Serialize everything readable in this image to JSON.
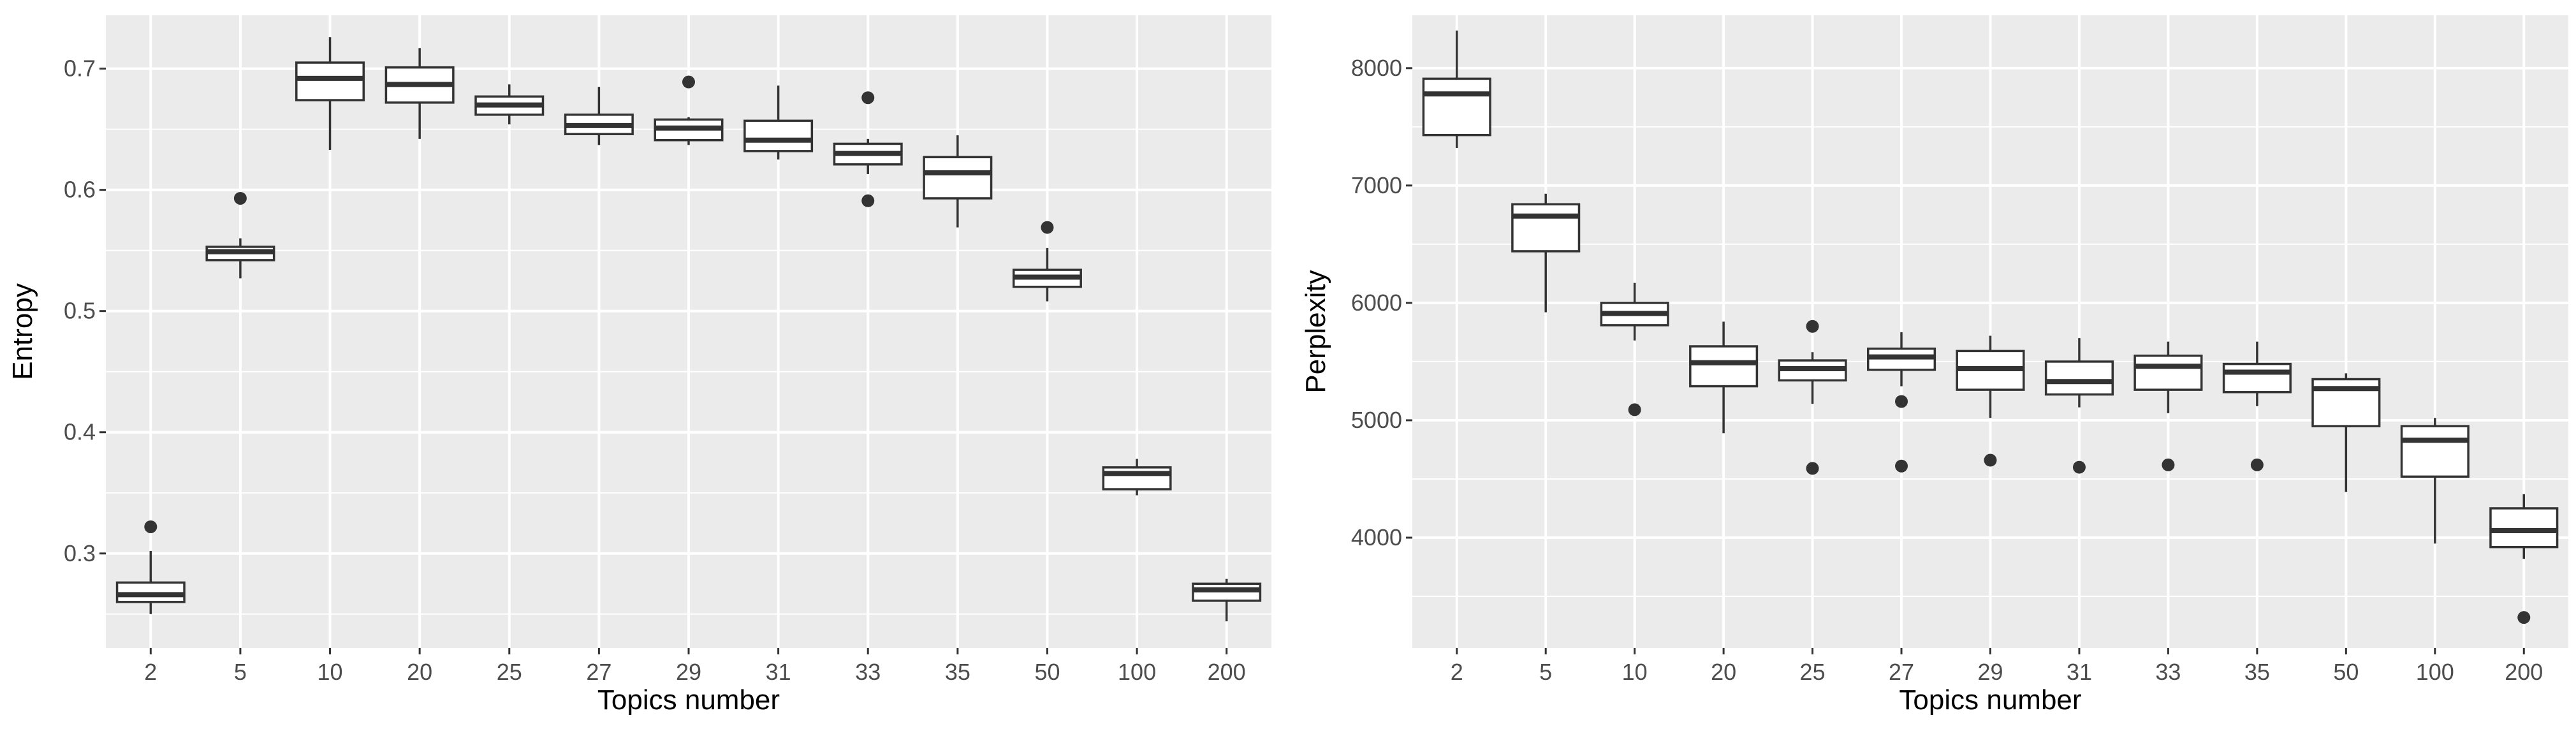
{
  "chart_data": [
    {
      "type": "box",
      "xlabel": "Topics number",
      "ylabel": "Entropy",
      "categories": [
        "2",
        "5",
        "10",
        "20",
        "25",
        "27",
        "29",
        "31",
        "33",
        "35",
        "50",
        "100",
        "200"
      ],
      "ylim": [
        0.222,
        0.744
      ],
      "yticks": [
        0.3,
        0.4,
        0.5,
        0.6,
        0.7
      ],
      "ytick_labels": [
        "0.3",
        "0.4",
        "0.5",
        "0.6",
        "0.7"
      ],
      "grid": true,
      "boxes": [
        {
          "min": 0.25,
          "q1": 0.26,
          "median": 0.266,
          "q3": 0.276,
          "max": 0.302,
          "outliers": [
            0.322
          ]
        },
        {
          "min": 0.527,
          "q1": 0.542,
          "median": 0.549,
          "q3": 0.553,
          "max": 0.56,
          "outliers": [
            0.593
          ]
        },
        {
          "min": 0.633,
          "q1": 0.674,
          "median": 0.692,
          "q3": 0.705,
          "max": 0.726,
          "outliers": []
        },
        {
          "min": 0.642,
          "q1": 0.672,
          "median": 0.687,
          "q3": 0.701,
          "max": 0.717,
          "outliers": []
        },
        {
          "min": 0.654,
          "q1": 0.662,
          "median": 0.67,
          "q3": 0.677,
          "max": 0.687,
          "outliers": []
        },
        {
          "min": 0.637,
          "q1": 0.646,
          "median": 0.653,
          "q3": 0.662,
          "max": 0.685,
          "outliers": []
        },
        {
          "min": 0.637,
          "q1": 0.641,
          "median": 0.651,
          "q3": 0.658,
          "max": 0.66,
          "outliers": [
            0.689
          ]
        },
        {
          "min": 0.625,
          "q1": 0.632,
          "median": 0.641,
          "q3": 0.657,
          "max": 0.686,
          "outliers": []
        },
        {
          "min": 0.613,
          "q1": 0.621,
          "median": 0.63,
          "q3": 0.638,
          "max": 0.642,
          "outliers": [
            0.591,
            0.676
          ]
        },
        {
          "min": 0.569,
          "q1": 0.593,
          "median": 0.614,
          "q3": 0.627,
          "max": 0.645,
          "outliers": []
        },
        {
          "min": 0.508,
          "q1": 0.52,
          "median": 0.528,
          "q3": 0.534,
          "max": 0.552,
          "outliers": [
            0.569
          ]
        },
        {
          "min": 0.348,
          "q1": 0.353,
          "median": 0.366,
          "q3": 0.371,
          "max": 0.378,
          "outliers": []
        },
        {
          "min": 0.244,
          "q1": 0.261,
          "median": 0.27,
          "q3": 0.275,
          "max": 0.279,
          "outliers": []
        }
      ]
    },
    {
      "type": "box",
      "xlabel": "Topics number",
      "ylabel": "Perplexity",
      "categories": [
        "2",
        "5",
        "10",
        "20",
        "25",
        "27",
        "29",
        "31",
        "33",
        "35",
        "50",
        "100",
        "200"
      ],
      "ylim": [
        3060,
        8450
      ],
      "yticks": [
        4000,
        5000,
        6000,
        7000,
        8000
      ],
      "ytick_labels": [
        "4000",
        "5000",
        "6000",
        "7000",
        "8000"
      ],
      "grid": true,
      "boxes": [
        {
          "min": 7320,
          "q1": 7430,
          "median": 7780,
          "q3": 7910,
          "max": 8320,
          "outliers": []
        },
        {
          "min": 5920,
          "q1": 6440,
          "median": 6740,
          "q3": 6840,
          "max": 6930,
          "outliers": []
        },
        {
          "min": 5680,
          "q1": 5810,
          "median": 5910,
          "q3": 6000,
          "max": 6170,
          "outliers": [
            5090
          ]
        },
        {
          "min": 4890,
          "q1": 5290,
          "median": 5490,
          "q3": 5630,
          "max": 5840,
          "outliers": []
        },
        {
          "min": 5140,
          "q1": 5340,
          "median": 5440,
          "q3": 5510,
          "max": 5580,
          "outliers": [
            4590,
            5800
          ]
        },
        {
          "min": 5290,
          "q1": 5430,
          "median": 5540,
          "q3": 5610,
          "max": 5750,
          "outliers": [
            4610,
            5160
          ]
        },
        {
          "min": 5020,
          "q1": 5260,
          "median": 5440,
          "q3": 5590,
          "max": 5720,
          "outliers": [
            4660
          ]
        },
        {
          "min": 5110,
          "q1": 5220,
          "median": 5330,
          "q3": 5500,
          "max": 5700,
          "outliers": [
            4600
          ]
        },
        {
          "min": 5060,
          "q1": 5260,
          "median": 5460,
          "q3": 5550,
          "max": 5670,
          "outliers": [
            4620
          ]
        },
        {
          "min": 5120,
          "q1": 5240,
          "median": 5410,
          "q3": 5480,
          "max": 5670,
          "outliers": [
            4620
          ]
        },
        {
          "min": 4390,
          "q1": 4950,
          "median": 5270,
          "q3": 5350,
          "max": 5400,
          "outliers": []
        },
        {
          "min": 3950,
          "q1": 4520,
          "median": 4830,
          "q3": 4950,
          "max": 5020,
          "outliers": []
        },
        {
          "min": 3820,
          "q1": 3920,
          "median": 4060,
          "q3": 4250,
          "max": 4370,
          "outliers": [
            3320
          ]
        }
      ]
    }
  ]
}
